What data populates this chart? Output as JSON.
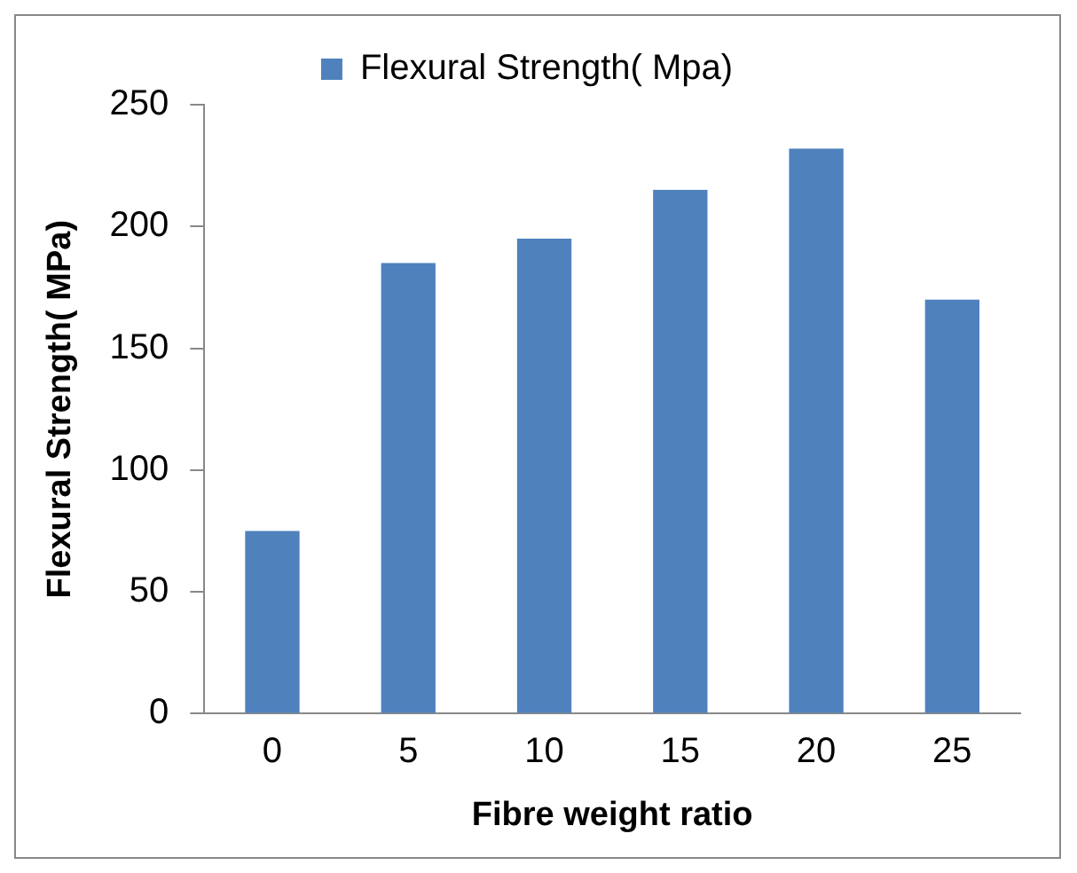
{
  "chart_data": {
    "type": "bar",
    "xlabel": "Fibre weight ratio",
    "ylabel": "Flexural Strength( MPa)",
    "categories": [
      "0",
      "5",
      "10",
      "15",
      "20",
      "25"
    ],
    "series": [
      {
        "name": "Flexural Strength( Mpa)",
        "color": "#4f81bd",
        "values": [
          75,
          185,
          195,
          215,
          232,
          170
        ]
      }
    ],
    "ylim": [
      0,
      250
    ],
    "yticks": [
      0,
      50,
      100,
      150,
      200,
      250
    ],
    "grid": false,
    "legend": "top"
  }
}
